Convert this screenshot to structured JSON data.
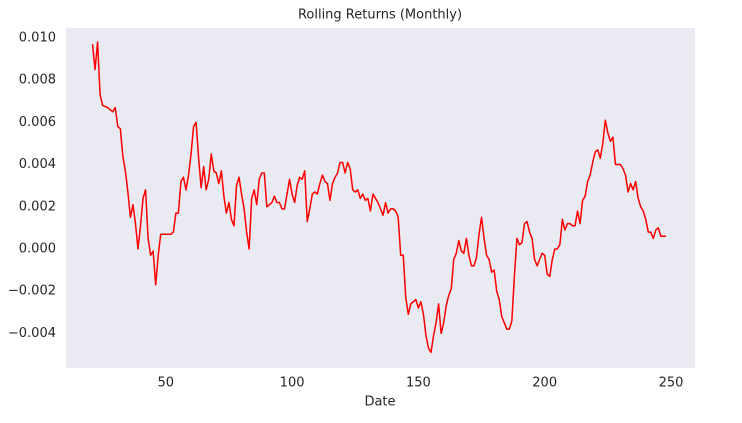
{
  "chart_data": {
    "type": "line",
    "title": "Rolling Returns (Monthly)",
    "x_label": "Date",
    "x": [
      21,
      22,
      23,
      24,
      25,
      27,
      28,
      29,
      30,
      31,
      32,
      33,
      34,
      35,
      36,
      37,
      38,
      39,
      40,
      41,
      42,
      43,
      44,
      45,
      46,
      47,
      48,
      50,
      52,
      53,
      54,
      55,
      56,
      57,
      58,
      59,
      60,
      61,
      62,
      63,
      64,
      65,
      66,
      67,
      68,
      69,
      70,
      71,
      72,
      73,
      74,
      75,
      76,
      77,
      78,
      79,
      80,
      81,
      82,
      83,
      84,
      85,
      86,
      87,
      88,
      89,
      90,
      91,
      92,
      93,
      94,
      95,
      96,
      97,
      98,
      99,
      100,
      101,
      102,
      103,
      104,
      105,
      106,
      107,
      108,
      109,
      110,
      111,
      112,
      113,
      114,
      115,
      116,
      117,
      118,
      119,
      120,
      121,
      122,
      123,
      124,
      125,
      126,
      127,
      128,
      129,
      130,
      131,
      132,
      133,
      134,
      135,
      136,
      137,
      138,
      139,
      140,
      141,
      142,
      143,
      144,
      145,
      146,
      147,
      149,
      150,
      151,
      152,
      153,
      154,
      155,
      156,
      157,
      158,
      159,
      160,
      161,
      162,
      163,
      164,
      165,
      166,
      167,
      168,
      169,
      170,
      171,
      172,
      173,
      174,
      175,
      176,
      177,
      178,
      179,
      180,
      181,
      182,
      183,
      184,
      185,
      186,
      187,
      188,
      189,
      190,
      191,
      192,
      193,
      194,
      195,
      196,
      197,
      198,
      199,
      200,
      201,
      202,
      203,
      204,
      205,
      206,
      207,
      208,
      209,
      210,
      211,
      212,
      213,
      214,
      215,
      216,
      217,
      218,
      219,
      220,
      221,
      222,
      223,
      224,
      225,
      226,
      227,
      228,
      229,
      230,
      231,
      232,
      233,
      234,
      235,
      236,
      237,
      238,
      239,
      240,
      241,
      242,
      243,
      244,
      245,
      246,
      248
    ],
    "series": [
      {
        "name": "Rolling Returns",
        "color": "#ff0000",
        "values": [
          0.0097,
          0.0085,
          0.0098,
          0.0073,
          0.0068,
          0.0067,
          0.0066,
          0.0065,
          0.0067,
          0.0058,
          0.0057,
          0.0044,
          0.0037,
          0.0027,
          0.0015,
          0.0021,
          0.0012,
          0.0,
          0.0011,
          0.0024,
          0.0028,
          0.0005,
          -0.0003,
          -0.0001,
          -0.0017,
          -0.0003,
          0.0007,
          0.0007,
          0.0007,
          0.0008,
          0.0017,
          0.0017,
          0.0032,
          0.0034,
          0.0028,
          0.0035,
          0.0045,
          0.0058,
          0.006,
          0.0043,
          0.0029,
          0.0039,
          0.0028,
          0.0033,
          0.0045,
          0.0037,
          0.0036,
          0.0031,
          0.0037,
          0.0025,
          0.0017,
          0.0022,
          0.0014,
          0.0011,
          0.003,
          0.0034,
          0.0026,
          0.0019,
          0.0008,
          0.0,
          0.0024,
          0.0028,
          0.0021,
          0.0033,
          0.0036,
          0.0036,
          0.002,
          0.0021,
          0.0022,
          0.0025,
          0.0022,
          0.0022,
          0.0019,
          0.0019,
          0.0026,
          0.0033,
          0.0026,
          0.0022,
          0.003,
          0.0034,
          0.0033,
          0.0037,
          0.0013,
          0.0019,
          0.0026,
          0.0027,
          0.0026,
          0.0031,
          0.0035,
          0.0032,
          0.0031,
          0.0023,
          0.0031,
          0.0034,
          0.0036,
          0.0041,
          0.0041,
          0.0036,
          0.0041,
          0.0038,
          0.0028,
          0.0027,
          0.0028,
          0.0024,
          0.0026,
          0.0023,
          0.0024,
          0.0018,
          0.0026,
          0.0024,
          0.0022,
          0.0019,
          0.0016,
          0.0022,
          0.0017,
          0.0019,
          0.0019,
          0.0018,
          0.0015,
          -0.0003,
          -0.0003,
          -0.0023,
          -0.0031,
          -0.0026,
          -0.0024,
          -0.0028,
          -0.0025,
          -0.0031,
          -0.0041,
          -0.0047,
          -0.0049,
          -0.0041,
          -0.0035,
          -0.0026,
          -0.004,
          -0.0035,
          -0.0027,
          -0.0022,
          -0.0019,
          -0.0005,
          -0.0002,
          0.0004,
          -0.0001,
          -0.0002,
          0.0005,
          -0.0003,
          -0.0008,
          -0.0008,
          -0.0004,
          0.0007,
          0.0015,
          0.0005,
          -0.0003,
          -0.0005,
          -0.0011,
          -0.001,
          -0.002,
          -0.0024,
          -0.0032,
          -0.0035,
          -0.0038,
          -0.0038,
          -0.0034,
          -0.0013,
          0.0005,
          0.0002,
          0.0003,
          0.0012,
          0.0013,
          0.0008,
          0.0005,
          -0.0005,
          -0.0008,
          -0.0005,
          -0.0002,
          -0.0003,
          -0.0012,
          -0.0013,
          -0.0005,
          0.0,
          0.0,
          0.0002,
          0.0014,
          0.0009,
          0.0012,
          0.0012,
          0.0011,
          0.0011,
          0.0018,
          0.0012,
          0.0023,
          0.0025,
          0.0032,
          0.0035,
          0.0041,
          0.0046,
          0.0047,
          0.0043,
          0.005,
          0.0061,
          0.0055,
          0.0051,
          0.0053,
          0.004,
          0.004,
          0.004,
          0.0038,
          0.0035,
          0.0027,
          0.0031,
          0.0028,
          0.0032,
          0.0024,
          0.002,
          0.0018,
          0.0014,
          0.0008,
          0.0008,
          0.0005,
          0.0009,
          0.001,
          0.0006,
          0.0006
        ]
      }
    ],
    "xlim": [
      10.5,
      259.5
    ],
    "ylim": [
      -0.00564,
      0.01047
    ],
    "xticks": [
      50,
      100,
      150,
      200,
      250
    ],
    "yticks": [
      {
        "value": -0.004,
        "label": "−0.004"
      },
      {
        "value": -0.002,
        "label": "−0.002"
      },
      {
        "value": 0.0,
        "label": "0.000"
      },
      {
        "value": 0.002,
        "label": "0.002"
      },
      {
        "value": 0.004,
        "label": "0.004"
      },
      {
        "value": 0.006,
        "label": "0.006"
      },
      {
        "value": 0.008,
        "label": "0.008"
      },
      {
        "value": 0.01,
        "label": "0.010"
      }
    ],
    "grid": false,
    "background": "#eaeaf2"
  }
}
